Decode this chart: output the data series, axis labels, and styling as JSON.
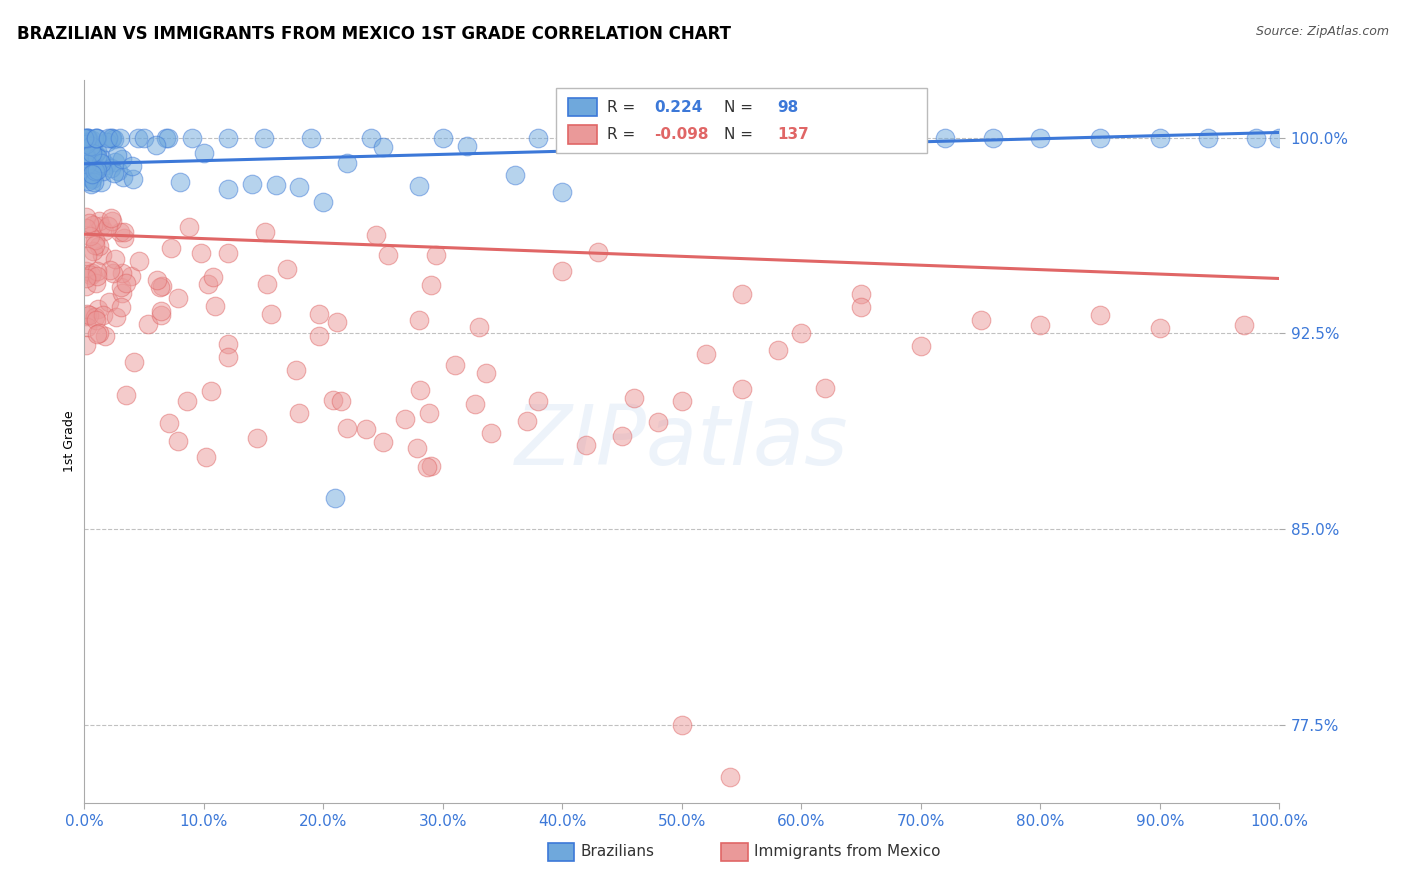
{
  "title": "BRAZILIAN VS IMMIGRANTS FROM MEXICO 1ST GRADE CORRELATION CHART",
  "source_text": "Source: ZipAtlas.com",
  "ylabel": "1st Grade",
  "xmin": 0.0,
  "xmax": 1.0,
  "ymin": 0.745,
  "ymax": 1.022,
  "yticks": [
    0.775,
    0.85,
    0.925,
    1.0
  ],
  "ytick_labels": [
    "77.5%",
    "85.0%",
    "92.5%",
    "100.0%"
  ],
  "xtick_labels": [
    "0.0%",
    "10.0%",
    "20.0%",
    "30.0%",
    "40.0%",
    "50.0%",
    "60.0%",
    "70.0%",
    "80.0%",
    "90.0%",
    "100.0%"
  ],
  "xticks": [
    0.0,
    0.1,
    0.2,
    0.3,
    0.4,
    0.5,
    0.6,
    0.7,
    0.8,
    0.9,
    1.0
  ],
  "blue_color": "#6fa8dc",
  "pink_color": "#ea9999",
  "blue_line_color": "#3c78d8",
  "pink_line_color": "#e06666",
  "blue_R": "0.224",
  "blue_N": "98",
  "pink_R": "-0.098",
  "pink_N": "137",
  "legend_label_blue": "Brazilians",
  "legend_label_pink": "Immigrants from Mexico",
  "watermark": "ZIPatlas",
  "blue_line_start_y": 0.99,
  "blue_line_end_y": 1.002,
  "pink_line_start_y": 0.963,
  "pink_line_end_y": 0.946,
  "tick_color": "#3c78d8",
  "grid_color": "#bbbbbb",
  "title_fontsize": 12,
  "source_fontsize": 9
}
